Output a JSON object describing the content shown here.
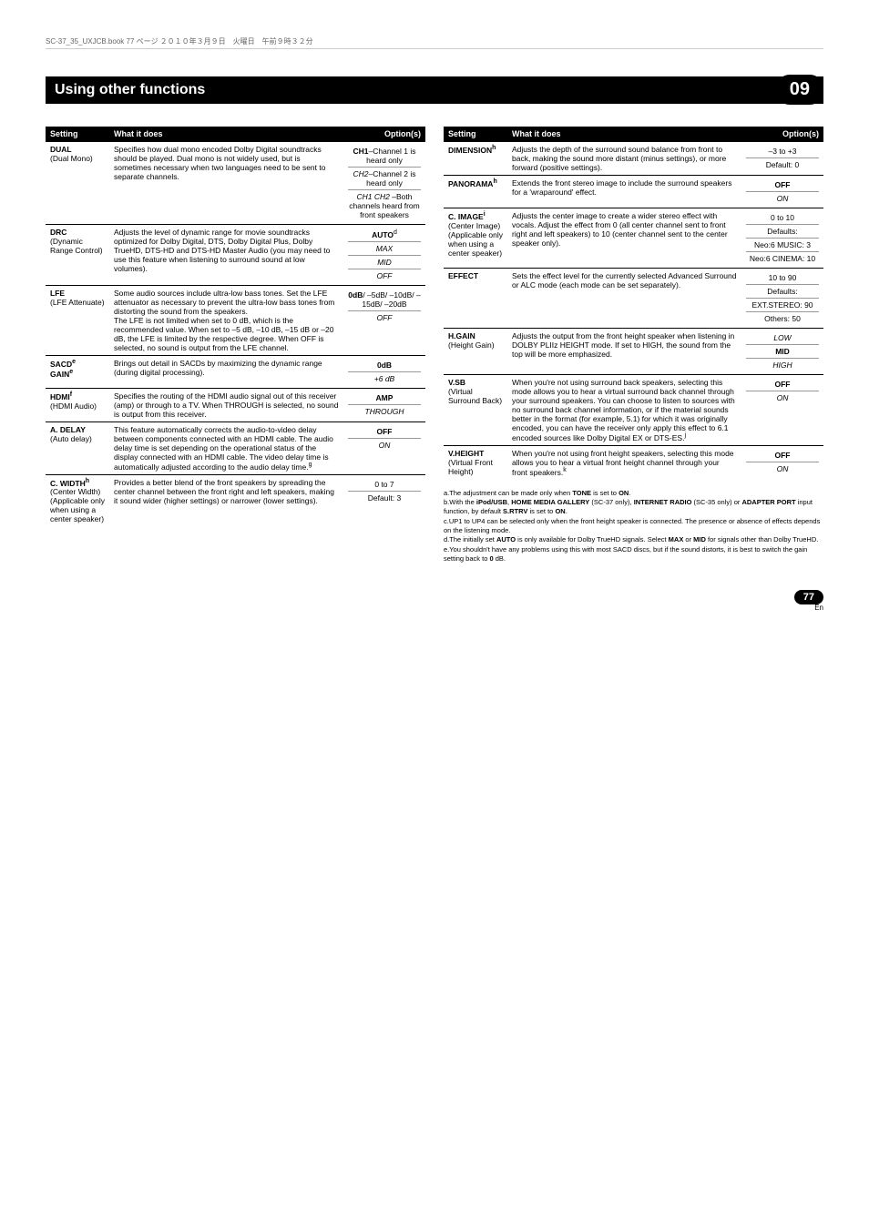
{
  "meta": "SC-37_35_UXJCB.book  77 ページ  ２０１０年３月９日　火曜日　午前９時３２分",
  "header": "Using other functions",
  "chapter": "09",
  "th": {
    "s": "Setting",
    "w": "What it does",
    "o": "Option(s)"
  },
  "left": [
    {
      "s": "DUAL",
      "sub": "(Dual Mono)",
      "d": "Specifies how dual mono encoded Dolby Digital soundtracks should be played. Dual mono is not widely used, but is sometimes necessary when two languages need to be sent to separate channels.",
      "o": [
        {
          "t": "CH1",
          "suf": "–Channel 1 is heard only",
          "b": 1
        },
        {
          "t": "CH2",
          "suf": "–Channel 2 is heard only",
          "i": 1
        },
        {
          "t": "CH1 CH2 –",
          "suf": "Both channels heard from front speakers",
          "i": 1
        }
      ]
    },
    {
      "s": "DRC",
      "sub": "(Dynamic Range Control)",
      "d": "Adjusts the level of dynamic range for movie soundtracks optimized for Dolby Digital, DTS, Dolby Digital Plus, Dolby TrueHD, DTS-HD and DTS-HD Master Audio (you may need to use this feature when listening to surround sound at low volumes).",
      "o": [
        {
          "t": "AUTO",
          "sup": "d",
          "b": 1
        },
        {
          "t": "MAX",
          "i": 1
        },
        {
          "t": "MID",
          "i": 1
        },
        {
          "t": "OFF",
          "i": 1
        }
      ]
    },
    {
      "s": "LFE",
      "sub": "(LFE Attenuate)",
      "d": "Some audio sources include ultra-low bass tones. Set the LFE attenuator as necessary to prevent the ultra-low bass tones from distorting the sound from the speakers.\nThe LFE is not limited when set to 0 dB, which is the recommended value. When set to –5 dB, –10 dB, –15 dB or –20 dB, the LFE is limited by the respective degree. When OFF is selected, no sound is output from the LFE channel.",
      "o": [
        {
          "t": "0dB",
          "suf": "/ –5dB/ –10dB/ –15dB/ –20dB",
          "b": 1
        },
        {
          "t": "OFF",
          "i": 1
        }
      ]
    },
    {
      "s": "SACD",
      "s2": "GAIN",
      "sup": "e",
      "d": "Brings out detail in SACDs by maximizing the dynamic range (during digital processing).",
      "o": [
        {
          "t": "0dB",
          "b": 1
        },
        {
          "t": "+6 dB",
          "i": 1
        }
      ]
    },
    {
      "s": "HDMI",
      "sup": "f",
      "sub": "(HDMI Audio)",
      "d": "Specifies the routing of the HDMI audio signal out of this receiver (amp) or through to a TV. When THROUGH is selected, no sound is output from this receiver.",
      "o": [
        {
          "t": "AMP",
          "b": 1
        },
        {
          "t": "THROUGH",
          "i": 1
        }
      ]
    },
    {
      "s": "A. DELAY",
      "sub": "(Auto delay)",
      "d": "This feature automatically corrects the audio-to-video delay between components connected with an HDMI cable. The audio delay time is set depending on the operational status of the display connected with an HDMI cable. The video delay time is automatically adjusted according to the audio delay time.",
      "sup2": "g",
      "o": [
        {
          "t": "OFF",
          "b": 1
        },
        {
          "t": "ON",
          "i": 1
        }
      ]
    },
    {
      "s": "C. WIDTH",
      "sup": "h",
      "sub": "(Center Width) (Applicable only when using a center speaker)",
      "d": "Provides a better blend of the front speakers by spreading the center channel between the front right and left speakers, making it sound wider (higher settings) or narrower (lower settings).",
      "o": [
        {
          "t": "0 to 7"
        },
        {
          "t": "Default: 3"
        }
      ]
    }
  ],
  "right": [
    {
      "s": "DIMENSION",
      "sup": "h",
      "d": "Adjusts the depth of the surround sound balance from front to back, making the sound more distant (minus settings), or more forward (positive settings).",
      "o": [
        {
          "t": "–3 to +3"
        },
        {
          "t": "Default: 0"
        }
      ]
    },
    {
      "s": "PANORAMA",
      "sup": "h",
      "d": "Extends the front stereo image to include the surround speakers for a 'wraparound' effect.",
      "o": [
        {
          "t": "OFF",
          "b": 1
        },
        {
          "t": "ON",
          "i": 1
        }
      ]
    },
    {
      "s": "C. IMAGE",
      "sup": "i",
      "sub": "(Center Image) (Applicable only when using a center speaker)",
      "d": "Adjusts the center image to create a wider stereo effect with vocals. Adjust the effect from 0 (all center channel sent to front right and left speakers) to 10 (center channel sent to the center speaker only).",
      "o": [
        {
          "t": "0 to 10"
        },
        {
          "t": "Defaults:"
        },
        {
          "t": "Neo:6 MUSIC: 3"
        },
        {
          "t": "Neo:6 CINEMA: 10"
        }
      ]
    },
    {
      "s": "EFFECT",
      "d": "Sets the effect level for the currently selected Advanced Surround or ALC mode (each mode can be set separately).",
      "o": [
        {
          "t": "10 to 90"
        },
        {
          "t": "Defaults:"
        },
        {
          "t": "EXT.STEREO: 90"
        },
        {
          "t": "Others: 50"
        }
      ]
    },
    {
      "s": "H.GAIN",
      "sub": "(Height Gain)",
      "d": "Adjusts the output from the front height speaker when listening in DOLBY PLIIz HEIGHT mode. If set to HIGH, the sound from the top will be more emphasized.",
      "o": [
        {
          "t": "LOW",
          "i": 1
        },
        {
          "t": "MID",
          "b": 1
        },
        {
          "t": "HIGH",
          "i": 1
        }
      ]
    },
    {
      "s": "V.SB",
      "sub": "(Virtual Surround Back)",
      "d": "When you're not using surround back speakers, selecting this mode allows you to hear a virtual surround back channel through your surround speakers. You can choose to listen to sources with no surround back channel information, or if the material sounds better in the format (for example, 5.1) for which it was originally encoded, you can have the receiver only apply this effect to 6.1 encoded sources like Dolby Digital EX or DTS-ES.",
      "sup2": "j",
      "o": [
        {
          "t": "OFF",
          "b": 1
        },
        {
          "t": "ON",
          "i": 1
        }
      ]
    },
    {
      "s": "V.HEIGHT",
      "sub": "(Virtual Front Height)",
      "d": "When you're not using front height speakers, selecting this mode allows you to hear a virtual front height channel through your front speakers.",
      "sup2": "k",
      "o": [
        {
          "t": "OFF",
          "b": 1
        },
        {
          "t": "ON",
          "i": 1
        }
      ]
    }
  ],
  "fn": [
    "a.The adjustment can be made only when TONE is set to ON.",
    "b.With the iPod/USB, HOME MEDIA GALLERY (SC-37 only), INTERNET RADIO (SC-35 only) or ADAPTER PORT input function, by default S.RTRV is set to ON.",
    "c.UP1 to UP4 can be selected only when the front height speaker is connected. The presence or absence of effects depends on the listening mode.",
    "d.The initially set AUTO is only available for Dolby TrueHD signals. Select MAX or MID for signals other than Dolby TrueHD.",
    "e.You shouldn't have any problems using this with most SACD discs, but if the sound distorts, it is best to switch the gain setting back to 0 dB."
  ],
  "page": "77",
  "lang": "En"
}
